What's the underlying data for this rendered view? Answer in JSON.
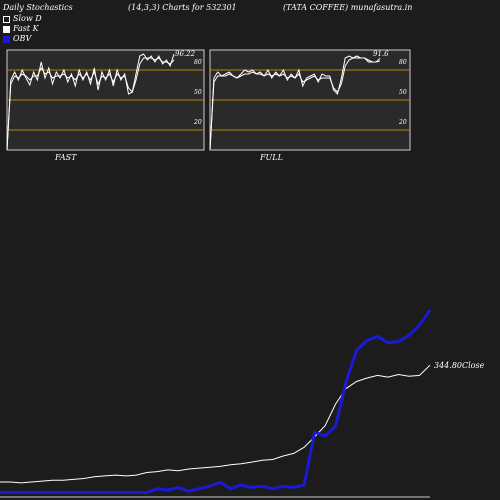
{
  "header": {
    "title": "Daily Stochastics",
    "params": "(14,3,3) Charts for 532301",
    "company_site": "(TATA COFFEE) munafasutra.in"
  },
  "legend": [
    {
      "label": "Slow  D",
      "color": "#ffffff"
    },
    {
      "label": "Fast K",
      "color": "#ffffff"
    },
    {
      "label": "OBV",
      "color": "#1a1ad6"
    }
  ],
  "colors": {
    "background": "#1c1c1c",
    "panel": "#2a2a2a",
    "level_line": "#b8860b",
    "stoch_line": "#ffffff",
    "price_line": "#ffffff",
    "obv_line": "#1a1ad6"
  },
  "chart_data": [
    {
      "type": "line",
      "panel": "FAST",
      "label": "FAST",
      "ylim": [
        0,
        100
      ],
      "levels": [
        80,
        50,
        20
      ],
      "level_labels": [
        "80",
        "50",
        "20"
      ],
      "last_value_label": "96.22",
      "series": [
        {
          "values": [
            0,
            70,
            78,
            70,
            80,
            72,
            65,
            78,
            70,
            88,
            72,
            82,
            66,
            78,
            72,
            80,
            68,
            76,
            64,
            80,
            70,
            78,
            66,
            82,
            60,
            78,
            70,
            80,
            64,
            80,
            70,
            76,
            56,
            58,
            76,
            94,
            96,
            90,
            94,
            88,
            94,
            86,
            90,
            84,
            96
          ]
        },
        {
          "values": [
            0,
            66,
            74,
            72,
            76,
            74,
            70,
            74,
            74,
            82,
            76,
            78,
            72,
            74,
            74,
            76,
            72,
            74,
            70,
            76,
            72,
            76,
            70,
            78,
            66,
            74,
            72,
            76,
            68,
            76,
            72,
            74,
            62,
            58,
            70,
            86,
            92,
            92,
            92,
            90,
            92,
            88,
            88,
            86,
            90
          ]
        }
      ]
    },
    {
      "type": "line",
      "panel": "FULL",
      "label": "FULL",
      "ylim": [
        0,
        100
      ],
      "levels": [
        80,
        50,
        20
      ],
      "level_labels": [
        "80",
        "50",
        "20"
      ],
      "last_value_label": "91.6",
      "series": [
        {
          "values": [
            0,
            72,
            78,
            74,
            76,
            78,
            74,
            72,
            76,
            80,
            78,
            80,
            76,
            78,
            74,
            80,
            72,
            78,
            74,
            80,
            70,
            76,
            72,
            80,
            64,
            72,
            74,
            76,
            68,
            76,
            74,
            74,
            60,
            56,
            72,
            92,
            94,
            92,
            94,
            92,
            92,
            88,
            88,
            88,
            91.6
          ]
        },
        {
          "values": [
            0,
            68,
            74,
            74,
            74,
            76,
            74,
            72,
            74,
            76,
            76,
            78,
            76,
            76,
            74,
            76,
            74,
            76,
            74,
            76,
            72,
            74,
            72,
            76,
            68,
            70,
            72,
            74,
            70,
            72,
            72,
            72,
            62,
            58,
            66,
            84,
            90,
            92,
            92,
            92,
            92,
            90,
            88,
            88,
            89
          ]
        }
      ]
    },
    {
      "type": "line",
      "panel": "price",
      "annotation": "344.80Close",
      "series": [
        {
          "name": "Close",
          "values": [
            210,
            210,
            209,
            210,
            211,
            212,
            212,
            213,
            214,
            216,
            217,
            218,
            217,
            218,
            221,
            222,
            224,
            223,
            225,
            226,
            227,
            228,
            230,
            231,
            233,
            235,
            236,
            240,
            243,
            250,
            262,
            275,
            300,
            318,
            326,
            330,
            333,
            331,
            334,
            332,
            333,
            344.8
          ]
        },
        {
          "name": "OBV",
          "values": [
            -3,
            -3,
            -3,
            -3,
            -3,
            -3,
            -3,
            -3,
            -3,
            -3,
            -3,
            -3,
            -3,
            -3,
            -3,
            0,
            -1,
            1,
            -2,
            0,
            2,
            5,
            0,
            3,
            1,
            2,
            0,
            2,
            1,
            3,
            45,
            42,
            50,
            85,
            110,
            118,
            121,
            116,
            117,
            122,
            130,
            142
          ]
        }
      ]
    }
  ]
}
